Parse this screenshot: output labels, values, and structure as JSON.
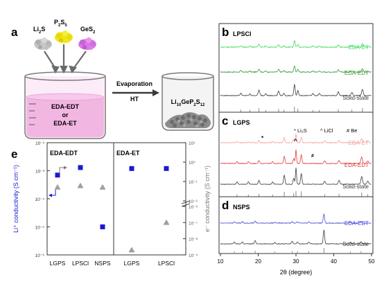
{
  "panel_a": {
    "letter": "a",
    "precursors": [
      {
        "base": "Li",
        "sub": "2",
        "tail": "S",
        "color": "#c8c8c8"
      },
      {
        "base": "P",
        "sub": "2",
        "tail": "S",
        "sub2": "5",
        "color": "#f0e614"
      },
      {
        "base": "GeS",
        "sub": "2",
        "tail": "",
        "color": "#d978e6"
      }
    ],
    "solvent_lines": [
      "EDA-EDT",
      "or",
      "EDA-ET"
    ],
    "arrow_top": "Evaporation",
    "arrow_bottom": "HT",
    "product": {
      "parts": [
        "Li",
        "10",
        "GeP",
        "2",
        "S",
        "12"
      ]
    }
  },
  "chart_data": [
    {
      "panel": "b",
      "type": "line",
      "title": "LPSCl",
      "xlabel": "2θ (degree)",
      "xlim": [
        10,
        50
      ],
      "xticks": [
        10,
        20,
        30,
        40,
        50
      ],
      "series": [
        {
          "name": "EDA-ET",
          "color": "#3ddc5a"
        },
        {
          "name": "EDA-EDT",
          "color": "#3a9a3a"
        },
        {
          "name": "Solid-state",
          "color": "#3a3a3a"
        }
      ]
    },
    {
      "panel": "c",
      "type": "line",
      "title": "LGPS",
      "legend": [
        "* Li₂S",
        "^ LiCl",
        "# Be"
      ],
      "xlim": [
        10,
        50
      ],
      "series": [
        {
          "name": "EDA-ET",
          "color": "#f2a0a0"
        },
        {
          "name": "EDA-EDT",
          "color": "#e23a3a"
        },
        {
          "name": "Solid-state",
          "color": "#3a3a3a"
        }
      ]
    },
    {
      "panel": "d",
      "type": "line",
      "title": "NSPS",
      "xlim": [
        10,
        50
      ],
      "series": [
        {
          "name": "EDA-EDT",
          "color": "#4a4adc"
        },
        {
          "name": "Solid-state",
          "color": "#3a3a3a"
        }
      ]
    },
    {
      "panel": "e",
      "type": "scatter",
      "groups": [
        "EDA-EDT",
        "EDA-ET"
      ],
      "categories_left": [
        "LGPS",
        "LPSCl",
        "NSPS"
      ],
      "categories_right": [
        "LGPS",
        "LPSCl"
      ],
      "ylabel_left": "Li⁺ conductivity (S cm⁻¹)",
      "ylabel_right": "e⁻ conductivity (S cm⁻¹)",
      "left_axis": {
        "log": true,
        "ylim_exp": [
          -6,
          -2
        ],
        "ticks": [
          "10⁻²",
          "10⁻³",
          "10⁻⁴",
          "10⁻⁵",
          "10⁻⁶"
        ]
      },
      "right_axis": {
        "log": true,
        "ticks_upper": [
          "10¹",
          "10⁰",
          "10⁻¹",
          "10⁻²"
        ],
        "ticks_lower": [
          "10⁻⁶",
          "10⁻⁷",
          "10⁻⁸",
          "10⁻⁹"
        ]
      },
      "li_conductivity": [
        {
          "group": "EDA-EDT",
          "category": "LGPS",
          "value": 0.0007
        },
        {
          "group": "EDA-EDT",
          "category": "LPSCl",
          "value": 0.0013
        },
        {
          "group": "EDA-EDT",
          "category": "NSPS",
          "value": 1e-05
        },
        {
          "group": "EDA-ET",
          "category": "LGPS",
          "value": 0.0012
        },
        {
          "group": "EDA-ET",
          "category": "LPSCl",
          "value": 0.0012
        }
      ],
      "e_conductivity": [
        {
          "group": "EDA-EDT",
          "category": "LGPS",
          "value": 0.05
        },
        {
          "group": "EDA-EDT",
          "category": "LPSCl",
          "value": 0.06
        },
        {
          "group": "EDA-EDT",
          "category": "NSPS",
          "value": 0.05
        },
        {
          "group": "EDA-ET",
          "category": "LGPS",
          "value": 2e-09
        },
        {
          "group": "EDA-ET",
          "category": "LPSCl",
          "value": 1e-07
        }
      ],
      "colors": {
        "li": "#1a1ad0",
        "e": "#a0a0a0"
      }
    }
  ]
}
